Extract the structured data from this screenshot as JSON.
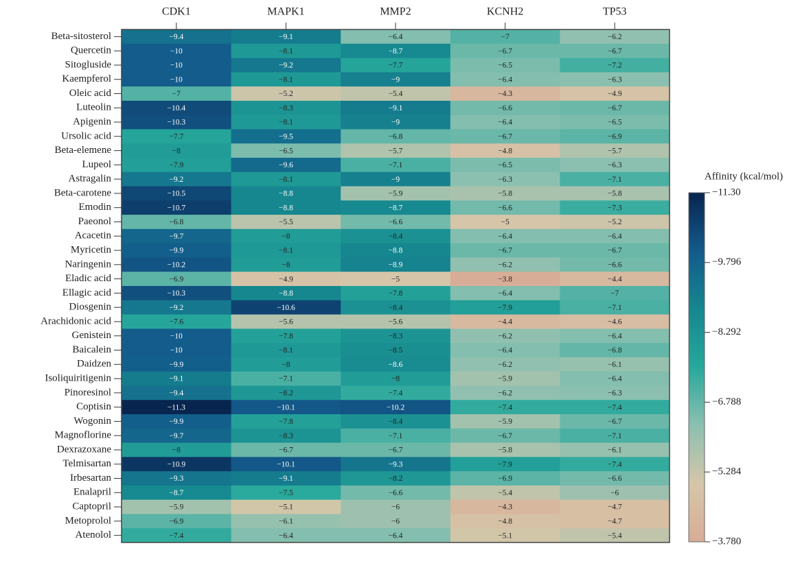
{
  "chart_data": {
    "type": "heatmap",
    "colorbar_label": "Affinity (kcal/mol)",
    "columns": [
      "CDK1",
      "MAPK1",
      "MMP2",
      "KCNH2",
      "TP53"
    ],
    "rows": [
      "Beta-sitosterol",
      "Quercetin",
      "Sitogluside",
      "Kaempferol",
      "Oleic acid",
      "Luteolin",
      "Apigenin",
      "Ursolic acid",
      "Beta-elemene",
      "Lupeol",
      "Astragalin",
      "Beta-carotene",
      "Emodin",
      "Paeonol",
      "Acacetin",
      "Myricetin",
      "Naringenin",
      "Eladic acid",
      "Ellagic acid",
      "Diosgenin",
      "Arachidonic acid",
      "Genistein",
      "Baicalein",
      "Daidzen",
      "Isoliquiritigenin",
      "Pinoresinol",
      "Coptisin",
      "Wogonin",
      "Magnoflorine",
      "Dexrazoxane",
      "Telmisartan",
      "Irbesartan",
      "Enalapril",
      "Captopril",
      "Metoprolol",
      "Atenolol"
    ],
    "values": [
      [
        -9.4,
        -9.1,
        -6.4,
        -7,
        -6.2
      ],
      [
        -10,
        -8.1,
        -8.7,
        -6.7,
        -6.7
      ],
      [
        -10,
        -9.2,
        -7.7,
        -6.5,
        -7.2
      ],
      [
        -10,
        -8.1,
        -9,
        -6.4,
        -6.3
      ],
      [
        -7,
        -5.2,
        -5.4,
        -4.3,
        -4.9
      ],
      [
        -10.4,
        -8.3,
        -9.1,
        -6.6,
        -6.7
      ],
      [
        -10.3,
        -8.1,
        -9,
        -6.4,
        -6.5
      ],
      [
        -7.7,
        -9.5,
        -6.8,
        -6.7,
        -6.9
      ],
      [
        -8,
        -6.5,
        -5.7,
        -4.8,
        -5.7
      ],
      [
        -7.9,
        -9.6,
        -7.1,
        -6.5,
        -6.3
      ],
      [
        -9.2,
        -8.1,
        -9,
        -6.3,
        -7.1
      ],
      [
        -10.5,
        -8.8,
        -5.9,
        -5.8,
        -5.8
      ],
      [
        -10.7,
        -8.8,
        -8.7,
        -6.6,
        -7.3
      ],
      [
        -6.8,
        -5.5,
        -6.6,
        -5,
        -5.2
      ],
      [
        -9.7,
        -8,
        -8.4,
        -6.4,
        -6.4
      ],
      [
        -9.9,
        -8.1,
        -8.8,
        -6.7,
        -6.7
      ],
      [
        -10.2,
        -8,
        -8.9,
        -6.2,
        -6.6
      ],
      [
        -6.9,
        -4.9,
        -5,
        -3.8,
        -4.4
      ],
      [
        -10.3,
        -8.8,
        -7.8,
        -6.4,
        -7
      ],
      [
        -9.2,
        -10.6,
        -8.4,
        -7.9,
        -7.1
      ],
      [
        -7.6,
        -5.6,
        -5.6,
        -4.4,
        -4.6
      ],
      [
        -10,
        -7.8,
        -8.3,
        -6.2,
        -6.4
      ],
      [
        -10,
        -8.1,
        -8.5,
        -6.4,
        -6.8
      ],
      [
        -9.9,
        -8,
        -8.6,
        -6.2,
        -6.1
      ],
      [
        -9.1,
        -7.1,
        -8,
        -5.9,
        -6.4
      ],
      [
        -9.4,
        -8.2,
        -7.4,
        -6.2,
        -6.3
      ],
      [
        -11.3,
        -10.1,
        -10.2,
        -7.4,
        -7.4
      ],
      [
        -9.9,
        -7.8,
        -8.4,
        -5.9,
        -6.7
      ],
      [
        -9.7,
        -8.3,
        -7.1,
        -6.7,
        -7.1
      ],
      [
        -8,
        -6.7,
        -6.7,
        -5.8,
        -6.1
      ],
      [
        -10.9,
        -10.1,
        -9.3,
        -7.9,
        -7.4
      ],
      [
        -9.3,
        -9.1,
        -8.2,
        -6.9,
        -6.6
      ],
      [
        -8.7,
        -7.5,
        -6.6,
        -5.4,
        -6
      ],
      [
        -5.9,
        -5.1,
        -6,
        -4.3,
        -4.7
      ],
      [
        -6.9,
        -6.1,
        -6,
        -4.8,
        -4.7
      ],
      [
        -7.4,
        -6.4,
        -6.4,
        -5.1,
        -5.4
      ]
    ],
    "value_labels": [
      [
        "−9.4",
        "−9.1",
        "−6.4",
        "−7",
        "−6.2"
      ],
      [
        "−10",
        "−8.1",
        "−8.7",
        "−6.7",
        "−6.7"
      ],
      [
        "−10",
        "−9.2",
        "−7.7",
        "−6.5",
        "−7.2"
      ],
      [
        "−10",
        "−8.1",
        "−9",
        "−6.4",
        "−6.3"
      ],
      [
        "−7",
        "−5.2",
        "−5.4",
        "−4.3",
        "−4.9"
      ],
      [
        "−10.4",
        "−8.3",
        "−9.1",
        "−6.6",
        "−6.7"
      ],
      [
        "−10.3",
        "−8.1",
        "−9",
        "−6.4",
        "−6.5"
      ],
      [
        "−7.7",
        "−9.5",
        "−6.8",
        "−6.7",
        "−6.9"
      ],
      [
        "−8",
        "−6.5",
        "−5.7",
        "−4.8",
        "−5.7"
      ],
      [
        "−7.9",
        "−9.6",
        "−7.1",
        "−6.5",
        "−6.3"
      ],
      [
        "−9.2",
        "−8.1",
        "−9",
        "−6.3",
        "−7.1"
      ],
      [
        "−10.5",
        "−8.8",
        "−5.9",
        "−5.8",
        "−5.8"
      ],
      [
        "−10.7",
        "−8.8",
        "−8.7",
        "−6.6",
        "−7.3"
      ],
      [
        "−6.8",
        "−5.5",
        "−6.6",
        "−5",
        "−5.2"
      ],
      [
        "−9.7",
        "−8",
        "−8.4",
        "−6.4",
        "−6.4"
      ],
      [
        "−9.9",
        "−8.1",
        "−8.8",
        "−6.7",
        "−6.7"
      ],
      [
        "−10.2",
        "−8",
        "−8.9",
        "−6.2",
        "−6.6"
      ],
      [
        "−6.9",
        "−4.9",
        "−5",
        "−3.8",
        "−4.4"
      ],
      [
        "−10.3",
        "−8.8",
        "−7.8",
        "−6.4",
        "−7"
      ],
      [
        "−9.2",
        "−10.6",
        "−8.4",
        "−7.9",
        "−7.1"
      ],
      [
        "−7.6",
        "−5.6",
        "−5.6",
        "−4.4",
        "−4.6"
      ],
      [
        "−10",
        "−7.8",
        "−8.3",
        "−6.2",
        "−6.4"
      ],
      [
        "−10",
        "−8.1",
        "−8.5",
        "−6.4",
        "−6.8"
      ],
      [
        "−9.9",
        "−8",
        "−8.6",
        "−6.2",
        "−6.1"
      ],
      [
        "−9.1",
        "−7.1",
        "−8",
        "−5.9",
        "−6.4"
      ],
      [
        "−9.4",
        "−8.2",
        "−7.4",
        "−6.2",
        "−6.3"
      ],
      [
        "−11.3",
        "−10.1",
        "−10.2",
        "−7.4",
        "−7.4"
      ],
      [
        "−9.9",
        "−7.8",
        "−8.4",
        "−5.9",
        "−6.7"
      ],
      [
        "−9.7",
        "−8.3",
        "−7.1",
        "−6.7",
        "−7.1"
      ],
      [
        "−8",
        "−6.7",
        "−6.7",
        "−5.8",
        "−6.1"
      ],
      [
        "−10.9",
        "−10.1",
        "−9.3",
        "−7.9",
        "−7.4"
      ],
      [
        "−9.3",
        "−9.1",
        "−8.2",
        "−6.9",
        "−6.6"
      ],
      [
        "−8.7",
        "−7.5",
        "−6.6",
        "−5.4",
        "−6"
      ],
      [
        "−5.9",
        "−5.1",
        "−6",
        "−4.3",
        "−4.7"
      ],
      [
        "−6.9",
        "−6.1",
        "−6",
        "−4.8",
        "−4.7"
      ],
      [
        "−7.4",
        "−6.4",
        "−6.4",
        "−5.1",
        "−5.4"
      ]
    ],
    "zlim": [
      -11.3,
      -3.78
    ],
    "zticks": [
      {
        "value": -11.3,
        "label": "−11.30"
      },
      {
        "value": -9.796,
        "label": "−9.796"
      },
      {
        "value": -8.292,
        "label": "−8.292"
      },
      {
        "value": -6.788,
        "label": "−6.788"
      },
      {
        "value": -5.284,
        "label": "−5.284"
      },
      {
        "value": -3.78,
        "label": "−3.780"
      }
    ],
    "colors": [
      "#08254f",
      "#135a8b",
      "#16878f",
      "#27a89c",
      "#8cc0b0",
      "#d6c6a9",
      "#d8ad97"
    ]
  }
}
